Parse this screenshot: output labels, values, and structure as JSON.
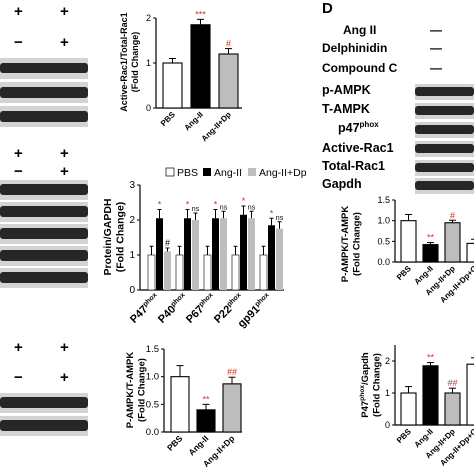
{
  "colors": {
    "pbs": "#ffffff",
    "ang": "#000000",
    "dp": "#bdbdbd",
    "blot_band": "#262626",
    "blot_bg": "#d3d3d3",
    "sig_red": "#c0392b"
  },
  "panel_d_letter": "D",
  "row1_signs": {
    "top": [
      "+",
      "+"
    ],
    "bottom": [
      "−",
      "+"
    ]
  },
  "row2_signs": {
    "top": [
      "+",
      "+"
    ],
    "bottom": [
      "−",
      "+"
    ]
  },
  "row3_signs": {
    "top": [
      "+",
      "+"
    ],
    "bottom": [
      "−",
      "+"
    ]
  },
  "legend": {
    "items": [
      "PBS",
      "Ang-II",
      "Ang-II+Dp"
    ]
  },
  "panel_d": {
    "treatments": [
      {
        "label": "Ang II",
        "value": "—"
      },
      {
        "label": "Delphinidin",
        "value": "—"
      },
      {
        "label": "Compound C",
        "value": "—"
      }
    ],
    "blot_labels": [
      "p-AMPK",
      "T-AMPK",
      "p47",
      "Active-Rac1",
      "Total-Rac1",
      "Gapdh"
    ],
    "p47_sup": "phox"
  },
  "chart_data": [
    {
      "id": "rac1",
      "type": "bar",
      "categories": [
        "PBS",
        "Ang-II",
        "Ang-II+Dp"
      ],
      "values": [
        1.0,
        1.85,
        1.2
      ],
      "errors": [
        0.1,
        0.12,
        0.12
      ],
      "significance": [
        "",
        "***",
        "#"
      ],
      "ylabel": "Active-Rac1/Total-Rac1",
      "ylabel2": "(Fold Change)",
      "ylim": [
        0,
        2
      ]
    },
    {
      "id": "nox",
      "type": "bar",
      "categories": [
        "P47",
        "P40",
        "P67",
        "P22",
        "gp91"
      ],
      "category_superscripts": [
        "phox",
        "phox",
        "phox",
        "phox",
        "phox"
      ],
      "series": [
        {
          "name": "PBS",
          "values": [
            1.0,
            1.0,
            1.0,
            1.0,
            1.0
          ]
        },
        {
          "name": "Ang-II",
          "values": [
            2.05,
            2.05,
            2.05,
            2.15,
            1.85
          ]
        },
        {
          "name": "Ang-II+Dp",
          "values": [
            1.1,
            2.0,
            2.05,
            2.05,
            1.75
          ]
        }
      ],
      "errors": [
        [
          0.25,
          0.25,
          0.25,
          0.25,
          0.25
        ],
        [
          0.25,
          0.25,
          0.25,
          0.25,
          0.2
        ],
        [
          0.1,
          0.2,
          0.2,
          0.2,
          0.2
        ]
      ],
      "significance_ang": [
        "*",
        "*",
        "*",
        "*",
        "*"
      ],
      "significance_dp": [
        "#",
        "ns",
        "ns",
        "ns",
        "ns"
      ],
      "ylabel": "Protein/GAPDH",
      "ylabel2": "(Fold Change)",
      "ylim": [
        0,
        3
      ]
    },
    {
      "id": "ampk",
      "type": "bar",
      "categories": [
        "PBS",
        "Ang-II",
        "Ang-II+Dp"
      ],
      "values": [
        1.0,
        0.4,
        0.87
      ],
      "errors": [
        0.2,
        0.1,
        0.12
      ],
      "significance": [
        "",
        "**",
        "##"
      ],
      "ylabel": "P-AMPK/T-AMPK",
      "ylabel2": "(Fold Change)",
      "ylim": [
        0,
        1.5
      ],
      "yticks": [
        "0.0",
        "0.5",
        "1.0",
        "1.5"
      ]
    },
    {
      "id": "d_ampk",
      "type": "bar",
      "categories": [
        "PBS",
        "Ang-II",
        "Ang-II+Dp",
        "Ang-II+Dp+C"
      ],
      "values": [
        1.0,
        0.42,
        0.95,
        0.45
      ],
      "errors": [
        0.15,
        0.05,
        0.06,
        0.1
      ],
      "significance": [
        "",
        "**",
        "#",
        ""
      ],
      "ylabel": "P-AMPK/T-AMPK",
      "ylabel2": "(Fold Change)",
      "ylim": [
        0,
        1.5
      ],
      "yticks": [
        "0.0",
        "0.5",
        "1.0",
        "1.5"
      ]
    },
    {
      "id": "d_p47",
      "type": "bar",
      "categories": [
        "PBS",
        "Ang-II",
        "Ang-II+Dp",
        "Ang-II+Dp+C"
      ],
      "values": [
        1.0,
        1.85,
        1.0,
        1.9
      ],
      "errors": [
        0.2,
        0.1,
        0.15,
        0.2
      ],
      "significance": [
        "",
        "**",
        "##",
        ""
      ],
      "ylabel": "P47",
      "ylabel_sup": "phox",
      "ylabel_tail": "/Gapdh",
      "ylabel2": "(Fold Change)",
      "ylim": [
        0,
        2.5
      ]
    }
  ]
}
